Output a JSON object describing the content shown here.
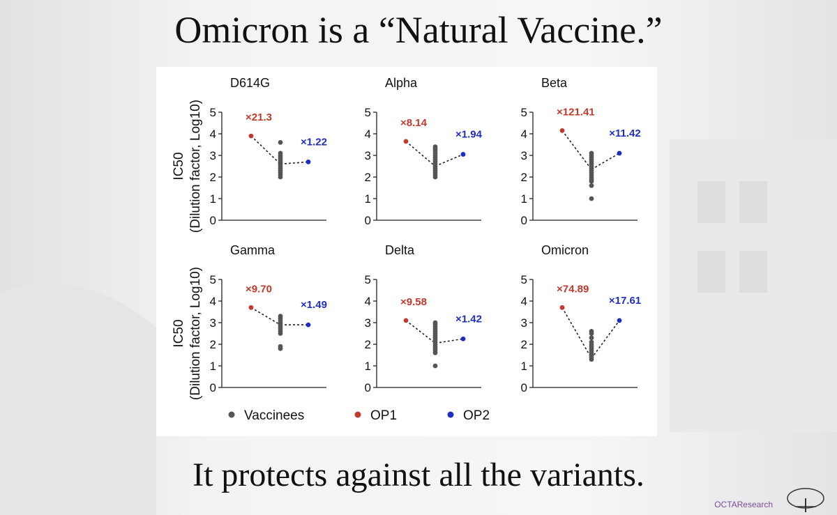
{
  "title": "Omicron is a “Natural Vaccine.”",
  "subtitle": "It protects against all the variants.",
  "watermark": "OCTAResearch",
  "colors": {
    "vaccinees": "#555555",
    "op1": "#c0392b",
    "op2": "#1f2ec2"
  },
  "chart_data": {
    "type": "scatter",
    "ylabel_line1": "IC50",
    "ylabel_line2": "(Dilution factor, Log10)",
    "yticks": [
      "0",
      "1",
      "2",
      "3",
      "4",
      "5"
    ],
    "ylim": [
      0,
      5
    ],
    "legend": [
      {
        "key": "vaccinees",
        "label": "Vaccinees"
      },
      {
        "key": "op1",
        "label": "OP1"
      },
      {
        "key": "op2",
        "label": "OP2"
      }
    ],
    "panels": [
      {
        "title": "D614G",
        "op1": 3.9,
        "op2": 2.7,
        "vacc_median": 2.6,
        "vacc": [
          2.0,
          2.1,
          2.2,
          2.3,
          2.4,
          2.5,
          2.6,
          2.65,
          2.7,
          2.8,
          2.9,
          3.0,
          3.1,
          3.6
        ],
        "op1_label": "×21.3",
        "op2_label": "×1.22"
      },
      {
        "title": "Alpha",
        "op1": 3.65,
        "op2": 3.05,
        "vacc_median": 2.5,
        "vacc": [
          2.0,
          2.1,
          2.2,
          2.3,
          2.4,
          2.5,
          2.6,
          2.7,
          2.8,
          2.9,
          3.0,
          3.1,
          3.2,
          3.3,
          3.4
        ],
        "op1_label": "×8.14",
        "op2_label": "×1.94"
      },
      {
        "title": "Beta",
        "op1": 4.15,
        "op2": 3.1,
        "vacc_median": 2.35,
        "vacc": [
          1.0,
          1.6,
          1.8,
          1.9,
          2.0,
          2.1,
          2.2,
          2.3,
          2.4,
          2.5,
          2.6,
          2.7,
          2.8,
          2.9,
          3.0,
          3.1
        ],
        "op1_label": "×121.41",
        "op2_label": "×11.42"
      },
      {
        "title": "Gamma",
        "op1": 3.7,
        "op2": 2.9,
        "vacc_median": 2.9,
        "vacc": [
          1.8,
          1.9,
          2.5,
          2.6,
          2.7,
          2.8,
          2.9,
          3.0,
          3.1,
          3.2,
          3.3
        ],
        "op1_label": "×9.70",
        "op2_label": "×1.49"
      },
      {
        "title": "Delta",
        "op1": 3.1,
        "op2": 2.25,
        "vacc_median": 2.05,
        "vacc": [
          1.0,
          1.6,
          1.7,
          1.8,
          1.9,
          2.0,
          2.1,
          2.2,
          2.3,
          2.4,
          2.5,
          2.6,
          2.7,
          2.8,
          2.9,
          3.0
        ],
        "op1_label": "×9.58",
        "op2_label": "×1.42"
      },
      {
        "title": "Omicron",
        "op1": 3.7,
        "op2": 3.1,
        "vacc_median": 1.35,
        "vacc": [
          1.3,
          1.4,
          1.5,
          1.6,
          1.7,
          1.8,
          1.9,
          2.0,
          2.1,
          2.3,
          2.5,
          2.6
        ],
        "op1_label": "×74.89",
        "op2_label": "×17.61"
      }
    ]
  }
}
